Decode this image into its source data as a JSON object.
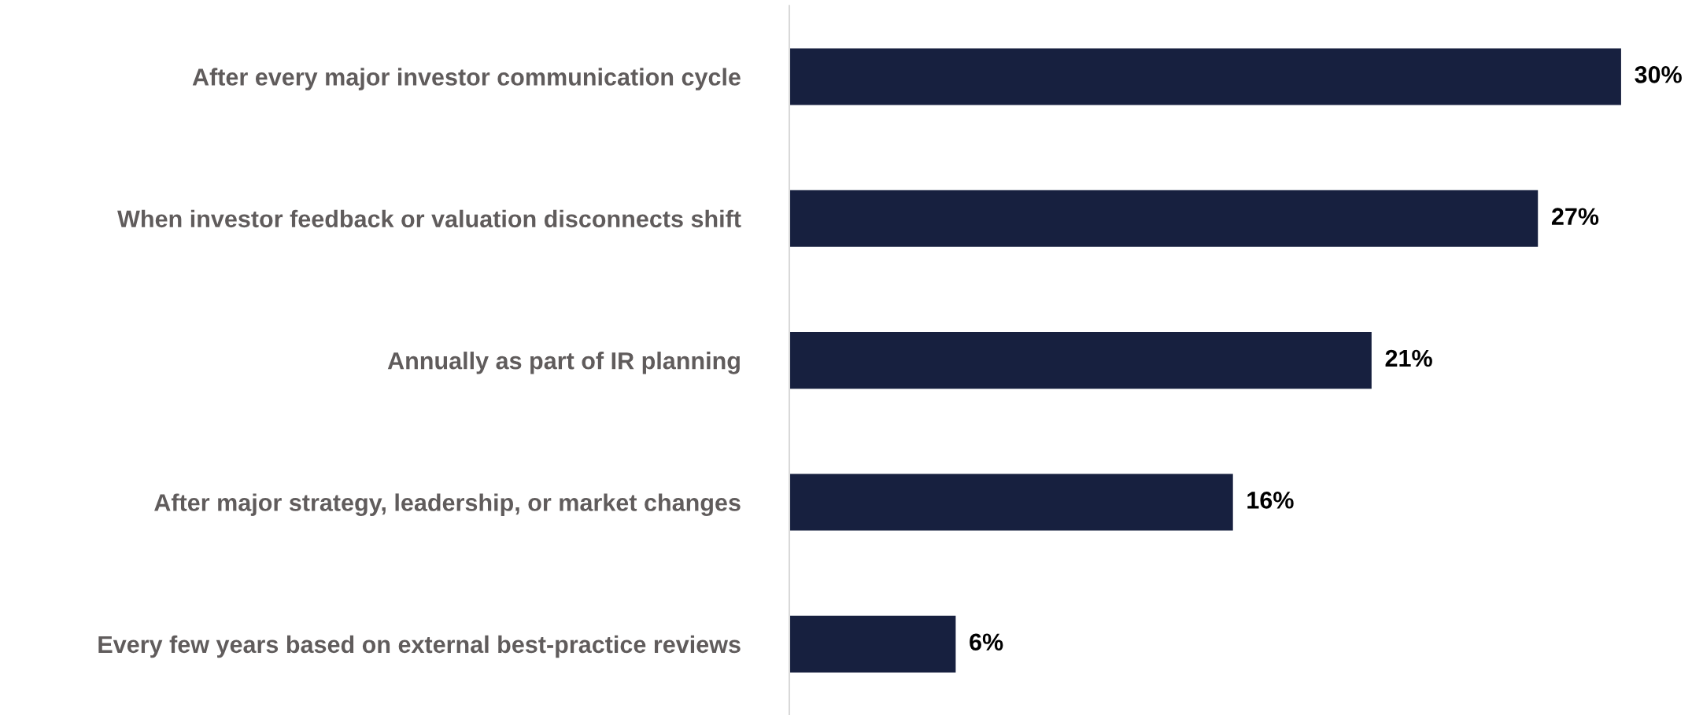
{
  "chart_data": {
    "type": "bar",
    "orientation": "horizontal",
    "categories": [
      "After every major investor communication cycle",
      "When investor feedback or valuation disconnects shift",
      "Annually as part of IR planning",
      "After major strategy, leadership, or market changes",
      "Every few years based on external best-practice reviews"
    ],
    "values": [
      30,
      27,
      21,
      16,
      6
    ],
    "color": "#17203f",
    "value_labels": [
      "30%",
      "27%",
      "21%",
      "16%",
      "6%"
    ],
    "grid": false,
    "legend": false
  }
}
